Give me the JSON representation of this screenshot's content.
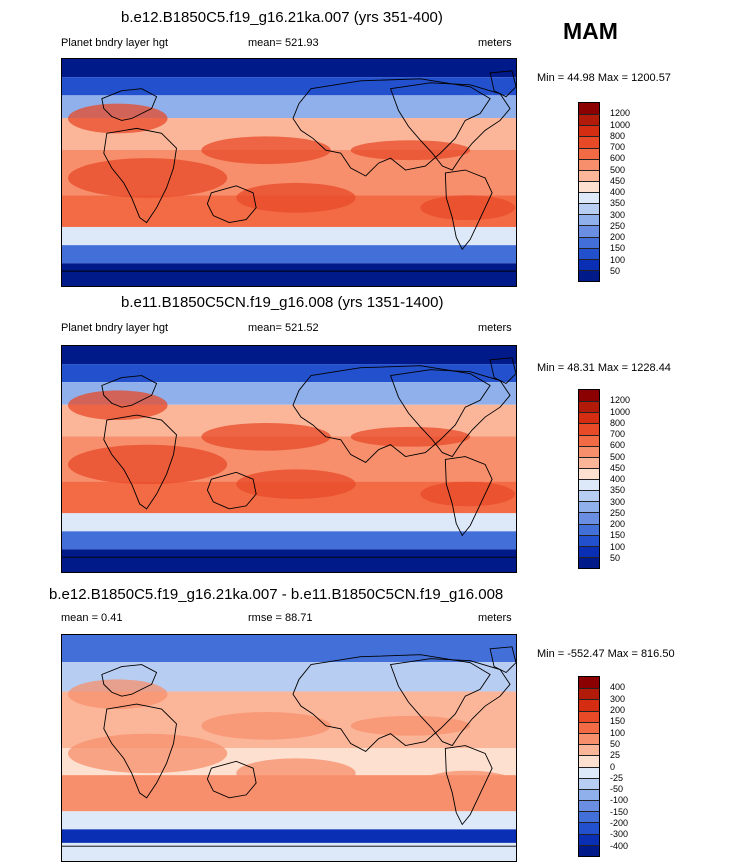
{
  "season": "MAM",
  "panels": [
    {
      "title": "b.e12.B1850C5.f19_g16.21ka.007 (yrs 351-400)",
      "left_label": "Planet bndry layer hgt",
      "mean_label": "mean= 521.93",
      "units": "meters",
      "minmax": "Min =  44.98 Max = 1200.57",
      "levels": [
        "1200",
        "1000",
        "800",
        "700",
        "600",
        "500",
        "450",
        "400",
        "350",
        "300",
        "250",
        "200",
        "150",
        "100",
        "50"
      ],
      "colors": [
        "#8b0000",
        "#b21a0a",
        "#d42d12",
        "#e84a28",
        "#f26b45",
        "#f78f6c",
        "#fbb69a",
        "#fde0d0",
        "#dde8f8",
        "#b8cdf2",
        "#8fb0eb",
        "#6a8fe2",
        "#4370d8",
        "#2350cc",
        "#0a2fb5",
        "#001a8a"
      ],
      "regime": "abs"
    },
    {
      "title": "b.e11.B1850C5CN.f19_g16.008 (yrs 1351-1400)",
      "left_label": "Planet bndry layer hgt",
      "mean_label": "mean= 521.52",
      "units": "meters",
      "minmax": "Min =  48.31 Max = 1228.44",
      "levels": [
        "1200",
        "1000",
        "800",
        "700",
        "600",
        "500",
        "450",
        "400",
        "350",
        "300",
        "250",
        "200",
        "150",
        "100",
        "50"
      ],
      "colors": [
        "#8b0000",
        "#b21a0a",
        "#d42d12",
        "#e84a28",
        "#f26b45",
        "#f78f6c",
        "#fbb69a",
        "#fde0d0",
        "#dde8f8",
        "#b8cdf2",
        "#8fb0eb",
        "#6a8fe2",
        "#4370d8",
        "#2350cc",
        "#0a2fb5",
        "#001a8a"
      ],
      "regime": "abs"
    },
    {
      "title": "b.e12.B1850C5.f19_g16.21ka.007 - b.e11.B1850C5CN.f19_g16.008",
      "left_label": "mean =   0.41",
      "mean_label": "rmse =  88.71",
      "units": "meters",
      "minmax": "Min = -552.47 Max = 816.50",
      "levels": [
        "400",
        "300",
        "200",
        "150",
        "100",
        "50",
        "25",
        "0",
        "-25",
        "-50",
        "-100",
        "-150",
        "-200",
        "-300",
        "-400"
      ],
      "colors": [
        "#8b0000",
        "#b21a0a",
        "#d42d12",
        "#e84a28",
        "#f26b45",
        "#f78f6c",
        "#fbb69a",
        "#fde0d0",
        "#dde8f8",
        "#b8cdf2",
        "#8fb0eb",
        "#6a8fe2",
        "#4370d8",
        "#2350cc",
        "#0a2fb5",
        "#001a8a"
      ],
      "regime": "diff"
    }
  ]
}
